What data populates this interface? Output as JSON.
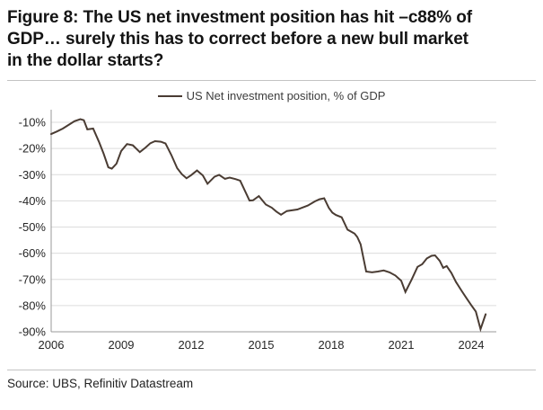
{
  "title": {
    "lines": [
      "Figure 8: The US net investment position has hit –c88% of",
      "GDP… surely this has to correct before a new bull market",
      "in the dollar starts?"
    ]
  },
  "source": "Source: UBS, Refinitiv Datastream",
  "colors": {
    "line": "#4a3c33",
    "grid": "#dcdcdc",
    "axis": "#9a9a9a",
    "tick_text": "#262626",
    "title_text": "#141414",
    "rule": "#c3c3c3"
  },
  "chart_data": {
    "type": "line",
    "legend": [
      "US Net investment position, % of GDP"
    ],
    "legend_position": "top-center",
    "grid": "horizontal",
    "xlim": [
      2006,
      2025.1
    ],
    "ylim": [
      -90,
      -5
    ],
    "x_ticks": [
      2006,
      2009,
      2012,
      2015,
      2018,
      2021,
      2024
    ],
    "y_ticks": [
      {
        "value": -10,
        "label": "-10%"
      },
      {
        "value": -20,
        "label": "-20%"
      },
      {
        "value": -30,
        "label": "-30%"
      },
      {
        "value": -40,
        "label": "-40%"
      },
      {
        "value": -50,
        "label": "-50%"
      },
      {
        "value": -60,
        "label": "-60%"
      },
      {
        "value": -70,
        "label": "-70%"
      },
      {
        "value": -80,
        "label": "-80%"
      },
      {
        "value": -90,
        "label": "-90%"
      }
    ],
    "series": [
      {
        "name": "US Net investment position, % of GDP",
        "units": "% of GDP",
        "points": [
          [
            2006.0,
            -14.5
          ],
          [
            2006.25,
            -13.5
          ],
          [
            2006.5,
            -12.4
          ],
          [
            2006.75,
            -11.0
          ],
          [
            2007.0,
            -9.6
          ],
          [
            2007.25,
            -8.8
          ],
          [
            2007.4,
            -9.2
          ],
          [
            2007.55,
            -12.7
          ],
          [
            2007.8,
            -12.4
          ],
          [
            2008.05,
            -17.5
          ],
          [
            2008.25,
            -22.0
          ],
          [
            2008.45,
            -27.2
          ],
          [
            2008.6,
            -27.7
          ],
          [
            2008.8,
            -25.8
          ],
          [
            2009.0,
            -21.0
          ],
          [
            2009.25,
            -18.3
          ],
          [
            2009.5,
            -18.8
          ],
          [
            2009.8,
            -21.4
          ],
          [
            2010.05,
            -19.6
          ],
          [
            2010.25,
            -18.0
          ],
          [
            2010.45,
            -17.2
          ],
          [
            2010.7,
            -17.4
          ],
          [
            2010.9,
            -18.1
          ],
          [
            2011.15,
            -22.5
          ],
          [
            2011.4,
            -27.5
          ],
          [
            2011.6,
            -29.8
          ],
          [
            2011.8,
            -31.4
          ],
          [
            2012.0,
            -30.2
          ],
          [
            2012.25,
            -28.4
          ],
          [
            2012.5,
            -30.3
          ],
          [
            2012.7,
            -33.5
          ],
          [
            2013.0,
            -30.8
          ],
          [
            2013.2,
            -30.1
          ],
          [
            2013.45,
            -31.6
          ],
          [
            2013.65,
            -31.1
          ],
          [
            2013.9,
            -31.7
          ],
          [
            2014.1,
            -32.3
          ],
          [
            2014.5,
            -39.9
          ],
          [
            2014.65,
            -39.8
          ],
          [
            2014.9,
            -38.2
          ],
          [
            2015.2,
            -41.4
          ],
          [
            2015.45,
            -42.6
          ],
          [
            2015.65,
            -44.1
          ],
          [
            2015.85,
            -45.3
          ],
          [
            2016.1,
            -43.9
          ],
          [
            2016.55,
            -43.3
          ],
          [
            2017.0,
            -41.8
          ],
          [
            2017.3,
            -40.2
          ],
          [
            2017.5,
            -39.4
          ],
          [
            2017.7,
            -39.0
          ],
          [
            2017.9,
            -42.7
          ],
          [
            2018.05,
            -44.5
          ],
          [
            2018.2,
            -45.4
          ],
          [
            2018.45,
            -46.3
          ],
          [
            2018.7,
            -51.0
          ],
          [
            2019.0,
            -52.5
          ],
          [
            2019.12,
            -53.8
          ],
          [
            2019.26,
            -56.6
          ],
          [
            2019.38,
            -61.8
          ],
          [
            2019.5,
            -67.0
          ],
          [
            2019.75,
            -67.3
          ],
          [
            2020.0,
            -67.0
          ],
          [
            2020.25,
            -66.6
          ],
          [
            2020.5,
            -67.3
          ],
          [
            2020.75,
            -68.5
          ],
          [
            2021.0,
            -70.5
          ],
          [
            2021.18,
            -74.8
          ],
          [
            2021.45,
            -70.0
          ],
          [
            2021.7,
            -65.2
          ],
          [
            2021.9,
            -64.2
          ],
          [
            2022.1,
            -62.0
          ],
          [
            2022.3,
            -61.0
          ],
          [
            2022.45,
            -60.8
          ],
          [
            2022.65,
            -62.9
          ],
          [
            2022.8,
            -65.6
          ],
          [
            2022.95,
            -64.9
          ],
          [
            2023.15,
            -67.5
          ],
          [
            2023.35,
            -71.0
          ],
          [
            2023.6,
            -74.5
          ],
          [
            2023.8,
            -77.2
          ],
          [
            2024.0,
            -79.8
          ],
          [
            2024.2,
            -82.3
          ],
          [
            2024.4,
            -89.0
          ],
          [
            2024.62,
            -83.3
          ]
        ]
      }
    ]
  }
}
